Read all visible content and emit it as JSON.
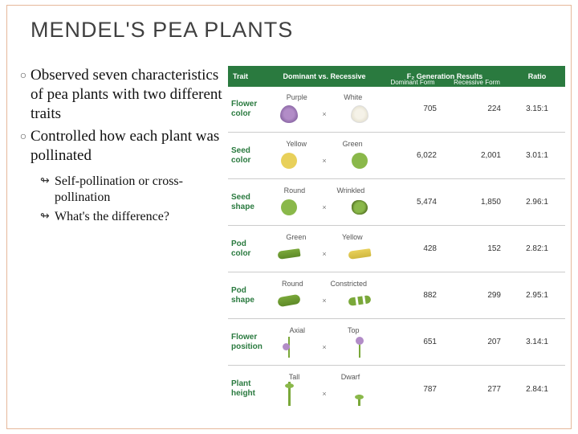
{
  "title": "MENDEL'S PEA PLANTS",
  "bullets": [
    {
      "text": "Observed seven characteristics of pea plants with two different traits"
    },
    {
      "text": "Controlled how each plant was pollinated"
    }
  ],
  "bullet_marker": "○",
  "sub_bullets": [
    {
      "text": "Self-pollination or cross-pollination"
    },
    {
      "text": "What's the difference?"
    }
  ],
  "sub_marker": "↬",
  "table": {
    "header": {
      "trait": "Trait",
      "dvr": "Dominant vs. Recessive",
      "f2": "F₂ Generation Results",
      "ratio": "Ratio",
      "sub_dominant": "Dominant Form",
      "sub_recessive": "Recessive Form"
    },
    "header_bg": "#2a7a3f",
    "header_fg": "#ffffff",
    "rows": [
      {
        "trait": "Flower color",
        "dom_label": "Purple",
        "rec_label": "White",
        "dom_count": "705",
        "rec_count": "224",
        "ratio": "3.15:1",
        "dom_ill": "flower-purple",
        "rec_ill": "flower-white"
      },
      {
        "trait": "Seed color",
        "dom_label": "Yellow",
        "rec_label": "Green",
        "dom_count": "6,022",
        "rec_count": "2,001",
        "ratio": "3.01:1",
        "dom_ill": "seed-yellow",
        "rec_ill": "seed-green"
      },
      {
        "trait": "Seed shape",
        "dom_label": "Round",
        "rec_label": "Wrinkled",
        "dom_count": "5,474",
        "rec_count": "1,850",
        "ratio": "2.96:1",
        "dom_ill": "seed-round",
        "rec_ill": "seed-wrinkled"
      },
      {
        "trait": "Pod color",
        "dom_label": "Green",
        "rec_label": "Yellow",
        "dom_count": "428",
        "rec_count": "152",
        "ratio": "2.82:1",
        "dom_ill": "pod-green",
        "rec_ill": "pod-yellow"
      },
      {
        "trait": "Pod shape",
        "dom_label": "Round",
        "rec_label": "Constricted",
        "dom_count": "882",
        "rec_count": "299",
        "ratio": "2.95:1",
        "dom_ill": "pod-round",
        "rec_ill": "pod-constricted"
      },
      {
        "trait": "Flower position",
        "dom_label": "Axial",
        "rec_label": "Top",
        "dom_count": "651",
        "rec_count": "207",
        "ratio": "3.14:1",
        "dom_ill": "flpos-axial",
        "rec_ill": "flpos-top"
      },
      {
        "trait": "Plant height",
        "dom_label": "Tall",
        "rec_label": "Dwarf",
        "dom_count": "787",
        "rec_count": "277",
        "ratio": "2.84:1",
        "dom_ill": "plant-tall",
        "rec_ill": "plant-dwarf"
      }
    ],
    "x_separator": "×"
  },
  "frame_border_color": "#e6b89a"
}
